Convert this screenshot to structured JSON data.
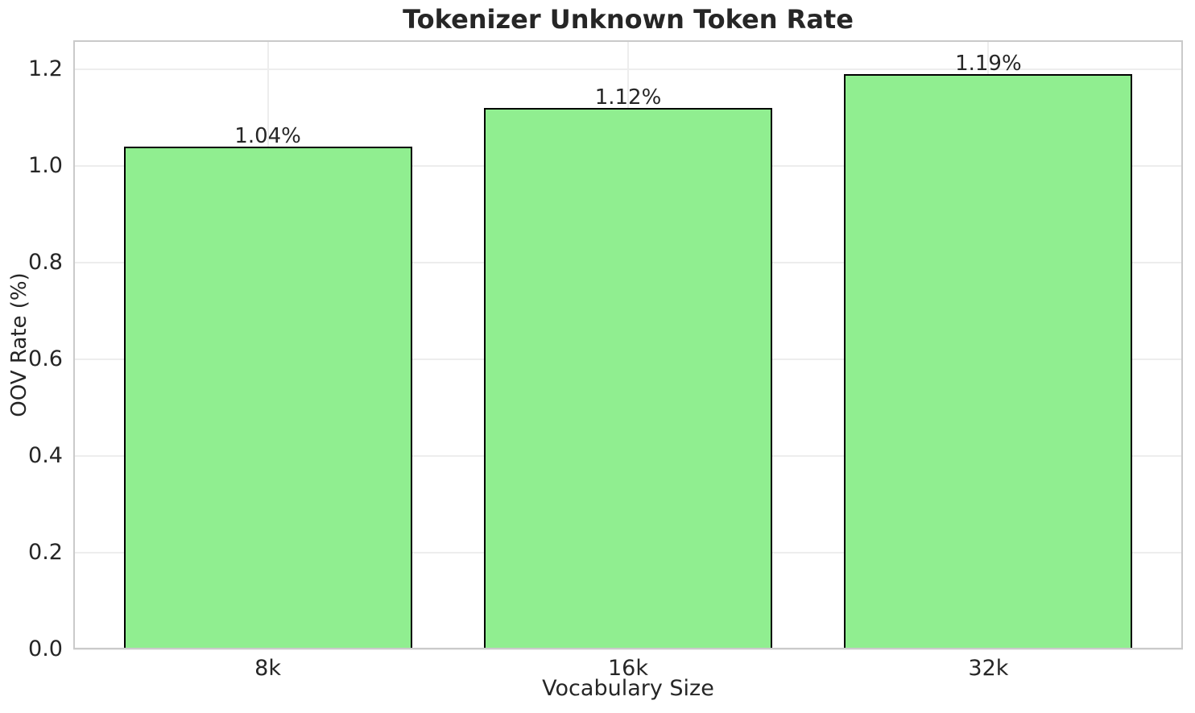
{
  "chart_data": {
    "type": "bar",
    "title": "Tokenizer Unknown Token Rate",
    "xlabel": "Vocabulary Size",
    "ylabel": "OOV Rate (%)",
    "categories": [
      "8k",
      "16k",
      "32k"
    ],
    "values": [
      1.04,
      1.12,
      1.19
    ],
    "bar_labels": [
      "1.04%",
      "1.12%",
      "1.19%"
    ],
    "y_tick_labels": [
      "0.0",
      "0.2",
      "0.4",
      "0.6",
      "0.8",
      "1.0",
      "1.2"
    ],
    "y_tick_values": [
      0.0,
      0.2,
      0.4,
      0.6,
      0.8,
      1.0,
      1.2
    ],
    "ylim": [
      0,
      1.26
    ],
    "xlim": [
      -0.54,
      2.54
    ],
    "bar_width": 0.8,
    "grid": true,
    "legend_position": "none",
    "colors": {
      "bar_fill": "#90ee90",
      "bar_edge": "#000000",
      "grid_line": "#ededed",
      "spine": "#cacaca",
      "text": "#262626",
      "background": "#ffffff"
    }
  }
}
